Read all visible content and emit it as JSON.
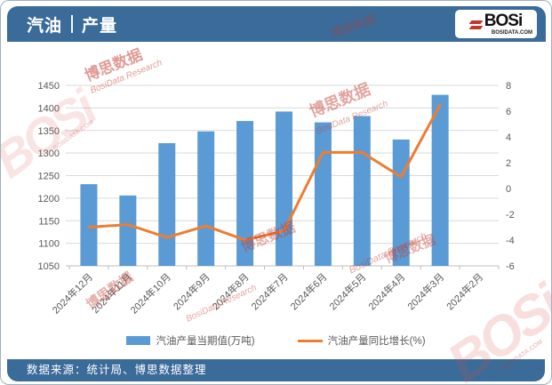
{
  "header": {
    "title_primary": "汽油",
    "title_secondary": "产量"
  },
  "logo": {
    "brand": "BOSi",
    "domain": "BOSIDATA.COM"
  },
  "watermark": {
    "cn": "博思数据",
    "en": "BosiData Research",
    "brand": "BOSi",
    "domain": "BOSIDATA.COM"
  },
  "footer": {
    "source_text": "数据来源：统计局、博思数据整理"
  },
  "colors": {
    "header_bg": "#3a6b99",
    "bar_blue": "#5b9bd5",
    "line_orange": "#ed7d31",
    "axis_text": "#595959",
    "gridline": "#d9d9d9",
    "axis_line": "#bfbfbf",
    "watermark_red": "#c0392b"
  },
  "chart_data": {
    "type": "bar+line",
    "categories": [
      "2024年12月",
      "2024年11月",
      "2024年10月",
      "2024年9月",
      "2024年8月",
      "2024年7月",
      "2024年6月",
      "2024年5月",
      "2024年4月",
      "2024年3月",
      "2024年2月"
    ],
    "series": [
      {
        "name": "汽油产量当期值(万吨)",
        "type": "bar",
        "axis": "left",
        "color": "#5b9bd5",
        "values": [
          1231,
          1206,
          1322,
          1348,
          1371,
          1392,
          1368,
          1382,
          1330,
          1429,
          null
        ]
      },
      {
        "name": "汽油产量同比增长(%)",
        "type": "line",
        "axis": "right",
        "color": "#ed7d31",
        "values": [
          -3.0,
          -2.8,
          -3.8,
          -2.9,
          -4.0,
          -3.3,
          2.8,
          2.8,
          0.9,
          6.5,
          null
        ]
      }
    ],
    "left_axis": {
      "min": 1050,
      "max": 1450,
      "ticks": [
        1050,
        1100,
        1150,
        1200,
        1250,
        1300,
        1350,
        1400,
        1450
      ]
    },
    "right_axis": {
      "min": -6,
      "max": 8,
      "ticks": [
        -6,
        -4,
        -2,
        0,
        2,
        4,
        6,
        8
      ]
    },
    "grid": true,
    "legend_position": "bottom",
    "title": "汽油 | 产量"
  }
}
